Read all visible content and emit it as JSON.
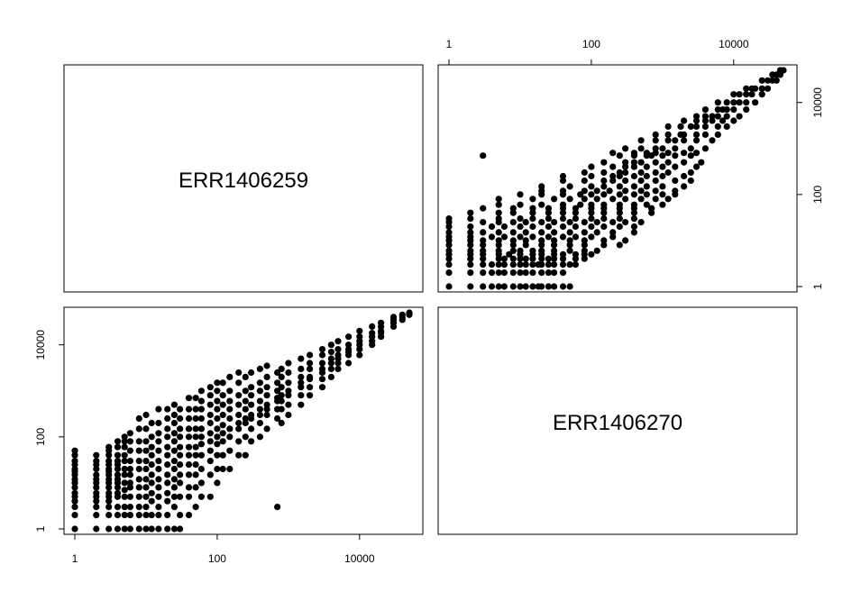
{
  "chart_data": {
    "type": "scatter",
    "layout": "pairs-matrix",
    "variables": [
      "ERR1406259",
      "ERR1406270"
    ],
    "log_scale": {
      "x": true,
      "y": true
    },
    "axis_range": [
      1,
      50000
    ],
    "ticks": [
      {
        "value": 1,
        "label": "1"
      },
      {
        "value": 100,
        "label": "100"
      },
      {
        "value": 10000,
        "label": "10000"
      }
    ],
    "point_color": "#000000",
    "panels": [
      {
        "row": 1,
        "col": 1,
        "kind": "label",
        "label": "ERR1406259"
      },
      {
        "row": 1,
        "col": 2,
        "kind": "scatter",
        "x_var": "ERR1406270",
        "y_var": "ERR1406259",
        "axes_shown": [
          "top",
          "right"
        ]
      },
      {
        "row": 2,
        "col": 1,
        "kind": "scatter",
        "x_var": "ERR1406259",
        "y_var": "ERR1406270",
        "axes_shown": [
          "bottom",
          "left"
        ]
      },
      {
        "row": 2,
        "col": 2,
        "kind": "label",
        "label": "ERR1406270"
      }
    ],
    "points": [
      [
        1,
        1
      ],
      [
        1,
        2
      ],
      [
        1,
        3
      ],
      [
        1,
        4
      ],
      [
        1,
        5
      ],
      [
        1,
        6
      ],
      [
        1,
        8
      ],
      [
        1,
        10
      ],
      [
        1,
        12
      ],
      [
        1,
        15
      ],
      [
        1,
        18
      ],
      [
        1,
        20
      ],
      [
        1,
        25
      ],
      [
        1,
        30
      ],
      [
        1,
        40
      ],
      [
        1,
        50
      ],
      [
        2,
        1
      ],
      [
        2,
        2
      ],
      [
        2,
        3
      ],
      [
        2,
        4
      ],
      [
        2,
        5
      ],
      [
        2,
        6
      ],
      [
        2,
        8
      ],
      [
        2,
        10
      ],
      [
        2,
        12
      ],
      [
        2,
        15
      ],
      [
        2,
        20
      ],
      [
        2,
        25
      ],
      [
        2,
        30
      ],
      [
        2,
        40
      ],
      [
        3,
        1
      ],
      [
        3,
        2
      ],
      [
        3,
        3
      ],
      [
        3,
        4
      ],
      [
        3,
        5
      ],
      [
        3,
        6
      ],
      [
        3,
        8
      ],
      [
        3,
        10
      ],
      [
        3,
        12
      ],
      [
        3,
        15
      ],
      [
        3,
        18
      ],
      [
        3,
        20
      ],
      [
        3,
        25
      ],
      [
        3,
        30
      ],
      [
        3,
        40
      ],
      [
        3,
        50
      ],
      [
        3,
        60
      ],
      [
        4,
        1
      ],
      [
        4,
        2
      ],
      [
        4,
        3
      ],
      [
        4,
        5
      ],
      [
        4,
        6
      ],
      [
        4,
        8
      ],
      [
        4,
        10
      ],
      [
        4,
        12
      ],
      [
        4,
        15
      ],
      [
        4,
        20
      ],
      [
        4,
        25
      ],
      [
        4,
        30
      ],
      [
        4,
        40
      ],
      [
        4,
        60
      ],
      [
        4,
        80
      ],
      [
        5,
        1
      ],
      [
        5,
        2
      ],
      [
        5,
        3
      ],
      [
        5,
        5
      ],
      [
        5,
        7
      ],
      [
        5,
        10
      ],
      [
        5,
        15
      ],
      [
        5,
        20
      ],
      [
        5,
        30
      ],
      [
        5,
        40
      ],
      [
        5,
        60
      ],
      [
        5,
        80
      ],
      [
        5,
        100
      ],
      [
        6,
        1
      ],
      [
        6,
        2
      ],
      [
        6,
        3
      ],
      [
        6,
        5
      ],
      [
        6,
        8
      ],
      [
        6,
        10
      ],
      [
        6,
        15
      ],
      [
        6,
        20
      ],
      [
        6,
        30
      ],
      [
        6,
        50
      ],
      [
        6,
        80
      ],
      [
        6,
        120
      ],
      [
        8,
        1
      ],
      [
        8,
        2
      ],
      [
        8,
        3
      ],
      [
        8,
        5
      ],
      [
        8,
        8
      ],
      [
        8,
        12
      ],
      [
        8,
        20
      ],
      [
        8,
        30
      ],
      [
        8,
        50
      ],
      [
        8,
        80
      ],
      [
        8,
        150
      ],
      [
        8,
        250
      ],
      [
        10,
        1
      ],
      [
        10,
        2
      ],
      [
        10,
        3
      ],
      [
        10,
        5
      ],
      [
        10,
        8
      ],
      [
        10,
        12
      ],
      [
        10,
        20
      ],
      [
        10,
        30
      ],
      [
        10,
        50
      ],
      [
        10,
        80
      ],
      [
        10,
        150
      ],
      [
        10,
        300
      ],
      [
        12,
        1
      ],
      [
        12,
        2
      ],
      [
        12,
        4
      ],
      [
        12,
        6
      ],
      [
        12,
        10
      ],
      [
        12,
        15
      ],
      [
        12,
        25
      ],
      [
        12,
        40
      ],
      [
        12,
        60
      ],
      [
        12,
        100
      ],
      [
        12,
        200
      ],
      [
        15,
        1
      ],
      [
        15,
        2
      ],
      [
        15,
        3
      ],
      [
        15,
        5
      ],
      [
        15,
        8
      ],
      [
        15,
        12
      ],
      [
        15,
        20
      ],
      [
        15,
        30
      ],
      [
        15,
        50
      ],
      [
        15,
        80
      ],
      [
        15,
        120
      ],
      [
        15,
        200
      ],
      [
        15,
        400
      ],
      [
        20,
        1
      ],
      [
        20,
        2
      ],
      [
        20,
        4
      ],
      [
        20,
        6
      ],
      [
        20,
        10
      ],
      [
        20,
        15
      ],
      [
        20,
        25
      ],
      [
        20,
        40
      ],
      [
        20,
        60
      ],
      [
        20,
        100
      ],
      [
        20,
        150
      ],
      [
        20,
        250
      ],
      [
        20,
        400
      ],
      [
        25,
        1
      ],
      [
        25,
        3
      ],
      [
        25,
        5
      ],
      [
        25,
        8
      ],
      [
        25,
        12
      ],
      [
        25,
        20
      ],
      [
        25,
        30
      ],
      [
        25,
        50
      ],
      [
        25,
        80
      ],
      [
        25,
        120
      ],
      [
        25,
        200
      ],
      [
        25,
        300
      ],
      [
        25,
        500
      ],
      [
        30,
        1
      ],
      [
        30,
        2
      ],
      [
        30,
        5
      ],
      [
        30,
        10
      ],
      [
        30,
        15
      ],
      [
        30,
        25
      ],
      [
        30,
        40
      ],
      [
        30,
        60
      ],
      [
        30,
        100
      ],
      [
        30,
        150
      ],
      [
        30,
        250
      ],
      [
        30,
        400
      ],
      [
        40,
        2
      ],
      [
        40,
        5
      ],
      [
        40,
        8
      ],
      [
        40,
        15
      ],
      [
        40,
        25
      ],
      [
        40,
        40
      ],
      [
        40,
        60
      ],
      [
        40,
        100
      ],
      [
        40,
        150
      ],
      [
        40,
        250
      ],
      [
        40,
        400
      ],
      [
        40,
        700
      ],
      [
        50,
        3
      ],
      [
        50,
        8
      ],
      [
        50,
        15
      ],
      [
        50,
        25
      ],
      [
        50,
        40
      ],
      [
        50,
        60
      ],
      [
        50,
        100
      ],
      [
        50,
        150
      ],
      [
        50,
        250
      ],
      [
        50,
        400
      ],
      [
        50,
        700
      ],
      [
        60,
        5
      ],
      [
        60,
        10
      ],
      [
        60,
        20
      ],
      [
        60,
        40
      ],
      [
        60,
        70
      ],
      [
        60,
        100
      ],
      [
        60,
        150
      ],
      [
        60,
        250
      ],
      [
        60,
        400
      ],
      [
        60,
        600
      ],
      [
        60,
        1000
      ],
      [
        80,
        5
      ],
      [
        80,
        15
      ],
      [
        80,
        30
      ],
      [
        80,
        50
      ],
      [
        80,
        80
      ],
      [
        80,
        120
      ],
      [
        80,
        200
      ],
      [
        80,
        300
      ],
      [
        80,
        500
      ],
      [
        80,
        800
      ],
      [
        80,
        1200
      ],
      [
        100,
        10
      ],
      [
        100,
        20
      ],
      [
        100,
        40
      ],
      [
        100,
        70
      ],
      [
        100,
        100
      ],
      [
        100,
        150
      ],
      [
        100,
        250
      ],
      [
        100,
        400
      ],
      [
        100,
        600
      ],
      [
        100,
        1000
      ],
      [
        100,
        1500
      ],
      [
        120,
        20
      ],
      [
        120,
        40
      ],
      [
        120,
        80
      ],
      [
        120,
        120
      ],
      [
        120,
        180
      ],
      [
        120,
        300
      ],
      [
        120,
        500
      ],
      [
        120,
        800
      ],
      [
        120,
        1500
      ],
      [
        150,
        20
      ],
      [
        150,
        50
      ],
      [
        150,
        100
      ],
      [
        150,
        150
      ],
      [
        150,
        250
      ],
      [
        150,
        400
      ],
      [
        150,
        600
      ],
      [
        150,
        1000
      ],
      [
        150,
        2000
      ],
      [
        200,
        40
      ],
      [
        200,
        80
      ],
      [
        200,
        150
      ],
      [
        200,
        200
      ],
      [
        200,
        300
      ],
      [
        200,
        500
      ],
      [
        200,
        800
      ],
      [
        200,
        1500
      ],
      [
        200,
        2500
      ],
      [
        250,
        40
      ],
      [
        250,
        100
      ],
      [
        250,
        200
      ],
      [
        250,
        250
      ],
      [
        250,
        400
      ],
      [
        250,
        600
      ],
      [
        250,
        1000
      ],
      [
        250,
        2000
      ],
      [
        300,
        80
      ],
      [
        300,
        150
      ],
      [
        300,
        250
      ],
      [
        300,
        300
      ],
      [
        300,
        500
      ],
      [
        300,
        800
      ],
      [
        300,
        1200
      ],
      [
        300,
        2500
      ],
      [
        400,
        100
      ],
      [
        400,
        200
      ],
      [
        400,
        300
      ],
      [
        400,
        400
      ],
      [
        400,
        600
      ],
      [
        400,
        1000
      ],
      [
        400,
        1500
      ],
      [
        400,
        3000
      ],
      [
        500,
        150
      ],
      [
        500,
        300
      ],
      [
        500,
        400
      ],
      [
        500,
        500
      ],
      [
        500,
        800
      ],
      [
        500,
        1200
      ],
      [
        500,
        2000
      ],
      [
        500,
        3500
      ],
      [
        700,
        3
      ],
      [
        700,
        250
      ],
      [
        700,
        400
      ],
      [
        700,
        600
      ],
      [
        700,
        700
      ],
      [
        700,
        1000
      ],
      [
        700,
        1500
      ],
      [
        700,
        2500
      ],
      [
        800,
        200
      ],
      [
        800,
        400
      ],
      [
        800,
        600
      ],
      [
        800,
        800
      ],
      [
        800,
        1200
      ],
      [
        800,
        2000
      ],
      [
        800,
        3000
      ],
      [
        1000,
        300
      ],
      [
        1000,
        500
      ],
      [
        1000,
        800
      ],
      [
        1000,
        1000
      ],
      [
        1000,
        1500
      ],
      [
        1000,
        2500
      ],
      [
        1000,
        4000
      ],
      [
        1500,
        500
      ],
      [
        1500,
        800
      ],
      [
        1500,
        1200
      ],
      [
        1500,
        1500
      ],
      [
        1500,
        2000
      ],
      [
        1500,
        3000
      ],
      [
        1500,
        5000
      ],
      [
        2000,
        800
      ],
      [
        2000,
        1200
      ],
      [
        2000,
        1800
      ],
      [
        2000,
        2000
      ],
      [
        2000,
        3000
      ],
      [
        2000,
        4000
      ],
      [
        2000,
        6000
      ],
      [
        3000,
        1200
      ],
      [
        3000,
        1800
      ],
      [
        3000,
        2500
      ],
      [
        3000,
        3000
      ],
      [
        3000,
        4000
      ],
      [
        3000,
        6000
      ],
      [
        3000,
        8000
      ],
      [
        4000,
        2000
      ],
      [
        4000,
        3000
      ],
      [
        4000,
        4000
      ],
      [
        4000,
        5000
      ],
      [
        4000,
        7000
      ],
      [
        4000,
        10000
      ],
      [
        5000,
        3000
      ],
      [
        5000,
        4000
      ],
      [
        5000,
        5000
      ],
      [
        5000,
        6000
      ],
      [
        5000,
        8000
      ],
      [
        5000,
        12000
      ],
      [
        7000,
        4000
      ],
      [
        7000,
        6000
      ],
      [
        7000,
        7000
      ],
      [
        7000,
        8000
      ],
      [
        7000,
        10000
      ],
      [
        7000,
        15000
      ],
      [
        10000,
        6000
      ],
      [
        10000,
        8000
      ],
      [
        10000,
        10000
      ],
      [
        10000,
        12000
      ],
      [
        10000,
        15000
      ],
      [
        10000,
        20000
      ],
      [
        15000,
        10000
      ],
      [
        15000,
        12000
      ],
      [
        15000,
        15000
      ],
      [
        15000,
        18000
      ],
      [
        15000,
        25000
      ],
      [
        20000,
        15000
      ],
      [
        20000,
        18000
      ],
      [
        20000,
        20000
      ],
      [
        20000,
        25000
      ],
      [
        20000,
        30000
      ],
      [
        30000,
        25000
      ],
      [
        30000,
        30000
      ],
      [
        30000,
        35000
      ],
      [
        30000,
        40000
      ],
      [
        40000,
        35000
      ],
      [
        40000,
        40000
      ],
      [
        40000,
        45000
      ],
      [
        50000,
        45000
      ],
      [
        50000,
        50000
      ]
    ]
  }
}
